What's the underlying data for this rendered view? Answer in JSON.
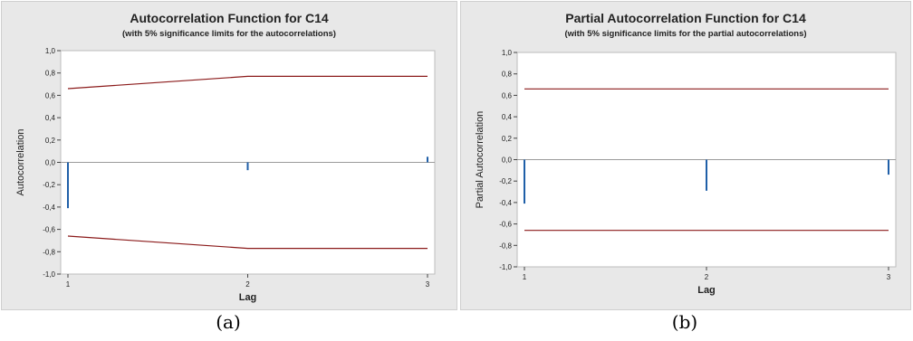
{
  "figures": [
    {
      "caption": "(a)",
      "chart_data": {
        "type": "bar",
        "title": "Autocorrelation Function for C14",
        "subtitle": "(with 5% significance limits for the autocorrelations)",
        "xlabel": "Lag",
        "ylabel": "Autocorrelation",
        "x": [
          1,
          2,
          3
        ],
        "values": [
          -0.41,
          -0.07,
          0.05
        ],
        "upper_limit": [
          0.66,
          0.77,
          0.77
        ],
        "lower_limit": [
          -0.66,
          -0.77,
          -0.77
        ],
        "ylim": [
          -1.0,
          1.0
        ],
        "yticks": [
          "1,0",
          "0,8",
          "0,6",
          "0,4",
          "0,2",
          "0,0",
          "-0,2",
          "-0,4",
          "-0,6",
          "-0,8",
          "-1,0"
        ],
        "xticks": [
          "1",
          "2",
          "3"
        ],
        "grid": false
      }
    },
    {
      "caption": "(b)",
      "chart_data": {
        "type": "bar",
        "title": "Partial Autocorrelation Function for C14",
        "subtitle": "(with 5% significance limits for the partial autocorrelations)",
        "xlabel": "Lag",
        "ylabel": "Partial Autocorrelation",
        "x": [
          1,
          2,
          3
        ],
        "values": [
          -0.41,
          -0.29,
          -0.14
        ],
        "upper_limit": [
          0.66,
          0.66,
          0.66
        ],
        "lower_limit": [
          -0.66,
          -0.66,
          -0.66
        ],
        "ylim": [
          -1.0,
          1.0
        ],
        "yticks": [
          "1,0",
          "0,8",
          "0,6",
          "0,4",
          "0,2",
          "0,0",
          "-0,2",
          "-0,4",
          "-0,6",
          "-0,8",
          "-1,0"
        ],
        "xticks": [
          "1",
          "2",
          "3"
        ],
        "grid": false
      }
    }
  ],
  "colors": {
    "bar": "#1f5fa8",
    "limit": "#8b1a1a",
    "zero_line": "#9a9a9a",
    "plot_bg": "#ffffff",
    "panel_bg": "#e8e8e8"
  }
}
